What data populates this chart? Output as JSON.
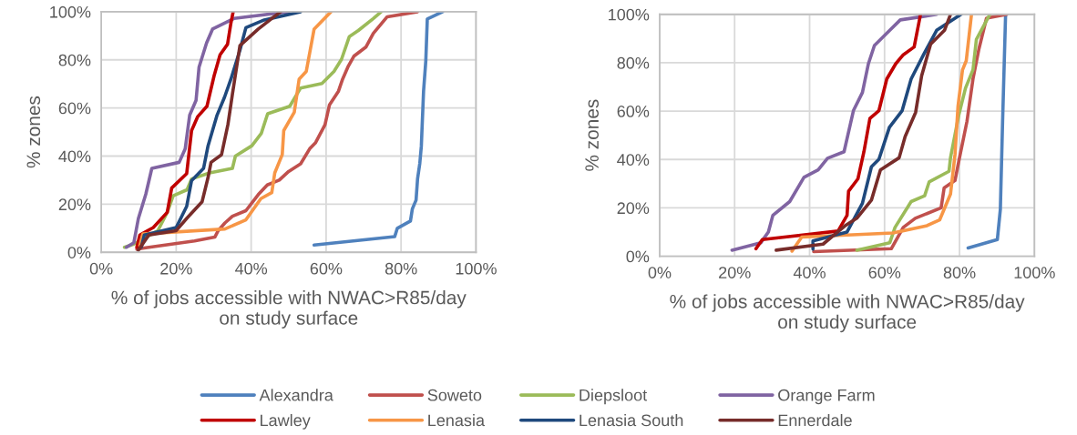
{
  "chart_data": [
    {
      "type": "line",
      "xlabel": "% of jobs accessible with NWAC>R85/day\non study surface",
      "ylabel": "% zones",
      "xlim": [
        0,
        100
      ],
      "ylim": [
        0,
        100
      ],
      "xticks": [
        {
          "value": 0,
          "label": "0%"
        },
        {
          "value": 20,
          "label": "20%"
        },
        {
          "value": 40,
          "label": "40%"
        },
        {
          "value": 60,
          "label": "60%"
        },
        {
          "value": 80,
          "label": "80%"
        },
        {
          "value": 100,
          "label": "100%"
        }
      ],
      "yticks": [
        {
          "value": 0,
          "label": "0%"
        },
        {
          "value": 20,
          "label": "20%"
        },
        {
          "value": 40,
          "label": "40%"
        },
        {
          "value": 60,
          "label": "60%"
        },
        {
          "value": 80,
          "label": "80%"
        },
        {
          "value": 100,
          "label": "100%"
        }
      ],
      "grid": true,
      "legend": "bottom",
      "marker": "none",
      "line_style": "solid",
      "series": [
        {
          "name": "Alexandra",
          "color": "#4f81bd",
          "x": [
            56.8,
            78.3,
            79,
            82.5,
            83,
            84,
            84.4,
            85,
            85.4,
            86,
            86.6,
            87,
            91.1
          ],
          "values": [
            3,
            6.5,
            10,
            13,
            18,
            21.7,
            30.5,
            37,
            44,
            67,
            79.6,
            97,
            100
          ]
        },
        {
          "name": "Soweto",
          "color": "#c0504d",
          "x": [
            9.5,
            12.3,
            24.9,
            30.3,
            31.2,
            33,
            35,
            38.6,
            41.9,
            44.3,
            47.5,
            50,
            53.2,
            55.6,
            57.2,
            59.7,
            60.9,
            63.3,
            64.4,
            65.8,
            67.4,
            70.6,
            72.6,
            76.3,
            84.4
          ],
          "values": [
            1.3,
            2,
            4.7,
            6.3,
            9,
            12.2,
            15,
            17.3,
            24,
            28,
            30,
            33.6,
            36.8,
            43,
            45.6,
            53,
            61.3,
            67,
            72,
            77,
            81.5,
            85.3,
            91,
            97.9,
            100
          ]
        },
        {
          "name": "Diepsloot",
          "color": "#9bbb59",
          "x": [
            6.2,
            8.7,
            15.1,
            17.6,
            19.2,
            22.9,
            24.1,
            28.9,
            35,
            35.8,
            40.2,
            42.7,
            44.4,
            50.3,
            53.2,
            58.9,
            62.1,
            64.1,
            66.2,
            68.6,
            72.6,
            74.7
          ],
          "values": [
            2.1,
            3.4,
            9,
            16.6,
            23.5,
            26,
            30.5,
            33,
            34.9,
            40,
            44.3,
            49.4,
            57.6,
            60.7,
            68.3,
            70.2,
            75.2,
            80.2,
            89.7,
            92.2,
            97.2,
            100
          ]
        },
        {
          "name": "Orange Farm",
          "color": "#8064a2",
          "x": [
            6.7,
            8.7,
            9.9,
            11.9,
            13.5,
            20.8,
            22.4,
            23.6,
            25.3,
            26.1,
            28.1,
            29.7,
            35.4,
            50
          ],
          "values": [
            2.1,
            4,
            14,
            24.2,
            34.9,
            37.4,
            43,
            57,
            63.2,
            77,
            87,
            92.8,
            97.2,
            100
          ]
        },
        {
          "name": "Lawley",
          "color": "#c00000",
          "x": [
            9.5,
            10.3,
            13.9,
            17.6,
            18.8,
            22.8,
            24.1,
            25.7,
            28.2,
            30.1,
            31.7,
            33.7,
            34.6,
            35.2
          ],
          "values": [
            2.1,
            7.2,
            10.3,
            16.6,
            26.7,
            32.7,
            50.6,
            56.3,
            60.7,
            73.3,
            82.1,
            86.5,
            95.3,
            100
          ]
        },
        {
          "name": "Lenasia",
          "color": "#f79646",
          "x": [
            10.3,
            11.1,
            33,
            38.6,
            42.6,
            45.5,
            46.3,
            48.3,
            48.7,
            51.5,
            52.8,
            54.7,
            56.8,
            61.3
          ],
          "values": [
            2.8,
            7.6,
            9.7,
            13.5,
            22.3,
            24.8,
            33,
            40.6,
            50.6,
            58.2,
            72,
            75.2,
            92.8,
            100
          ]
        },
        {
          "name": "Lenasia South",
          "color": "#1f497d",
          "x": [
            10.7,
            11.5,
            20,
            22.8,
            24.1,
            27.3,
            28.5,
            30.9,
            32.9,
            34.6,
            37,
            38.6,
            43.5,
            53.2
          ],
          "values": [
            2.1,
            7.2,
            10.3,
            19.1,
            29.8,
            34.9,
            44.3,
            57,
            64.5,
            72,
            84,
            93.4,
            96.6,
            100
          ]
        },
        {
          "name": "Ennerdale",
          "color": "#772c2a",
          "x": [
            9.9,
            12.7,
            20,
            22.8,
            26.9,
            28.5,
            29.3,
            32.1,
            33.8,
            35,
            37,
            41.9,
            45.5,
            47.9
          ],
          "values": [
            0.9,
            7.2,
            9,
            14.1,
            21,
            31.1,
            37.4,
            40.6,
            53.1,
            65.7,
            85.9,
            92.8,
            97.2,
            100
          ]
        }
      ]
    },
    {
      "type": "line",
      "xlabel": "% of jobs accessible with NWAC>R85/day\non study surface",
      "ylabel": "% zones",
      "xlim": [
        0,
        100
      ],
      "ylim": [
        0,
        100
      ],
      "xticks": [
        {
          "value": 0,
          "label": "0%"
        },
        {
          "value": 20,
          "label": "20%"
        },
        {
          "value": 40,
          "label": "40%"
        },
        {
          "value": 60,
          "label": "60%"
        },
        {
          "value": 80,
          "label": "80%"
        },
        {
          "value": 100,
          "label": "100%"
        }
      ],
      "yticks": [
        {
          "value": 0,
          "label": "0%"
        },
        {
          "value": 20,
          "label": "20%"
        },
        {
          "value": 40,
          "label": "40%"
        },
        {
          "value": 60,
          "label": "60%"
        },
        {
          "value": 80,
          "label": "80%"
        },
        {
          "value": 100,
          "label": "100%"
        }
      ],
      "grid": true,
      "marker": "none",
      "line_style": "solid",
      "series": [
        {
          "color": "#4f81bd",
          "x": [
            82.3,
            90.1,
            90.9,
            91.5,
            92.3
          ],
          "values": [
            3.4,
            6.9,
            19.4,
            55.8,
            100
          ]
        },
        {
          "color": "#c0504d",
          "x": [
            41.1,
            61.8,
            65,
            68.2,
            75.1,
            75.9,
            78.8,
            80,
            82,
            83.6,
            85.2,
            87.2,
            92.6
          ],
          "values": [
            1.9,
            3.1,
            11.9,
            15.7,
            20,
            28.2,
            31.3,
            40.7,
            55.8,
            73.3,
            85.8,
            98.4,
            100
          ]
        },
        {
          "color": "#9bbb59",
          "x": [
            52.6,
            61.4,
            62.8,
            67.1,
            70.7,
            71.9,
            77.2,
            77.6,
            79.8,
            81.6,
            83.6,
            84.5,
            88.1
          ],
          "values": [
            2.5,
            5.6,
            11.9,
            22.6,
            25,
            30.7,
            35.1,
            40.7,
            58.3,
            69.5,
            77.1,
            89.6,
            100
          ]
        },
        {
          "color": "#8064a2",
          "x": [
            19.3,
            27,
            29,
            30.2,
            34.7,
            38.5,
            42.3,
            44.8,
            49.2,
            51.7,
            54.1,
            55.7,
            57.3,
            61.4,
            64.2,
            73.9
          ],
          "values": [
            2.5,
            5.6,
            10,
            16.9,
            22.6,
            32.6,
            35.7,
            40.5,
            43.2,
            60.2,
            67.7,
            79.6,
            87.1,
            93.4,
            97.7,
            100
          ]
        },
        {
          "color": "#c00000",
          "x": [
            25.7,
            27.4,
            47.6,
            50,
            50.4,
            52.9,
            54.5,
            56.1,
            58.5,
            60.6,
            63,
            65,
            67.9,
            69.6
          ],
          "values": [
            3.1,
            6.9,
            10.4,
            16.9,
            26.9,
            32,
            43.2,
            57,
            60.2,
            73.3,
            79.6,
            83.3,
            86.5,
            100
          ]
        },
        {
          "color": "#f79646",
          "x": [
            35.3,
            37.9,
            62.2,
            71.1,
            74.7,
            77.6,
            78.8,
            79.6,
            80.8,
            81.8,
            83.2
          ],
          "values": [
            2.1,
            7.9,
            9.6,
            12.5,
            15,
            25.7,
            42,
            62,
            77,
            80.8,
            100
          ]
        },
        {
          "color": "#1f497d",
          "x": [
            40.9,
            40.9,
            50,
            54.1,
            56.5,
            58.5,
            61.3,
            64.7,
            67.1,
            70.4,
            73.9,
            80.4
          ],
          "values": [
            2.9,
            6.3,
            10,
            21.9,
            37,
            40.1,
            53.3,
            60.2,
            73.3,
            83.3,
            93.4,
            100
          ]
        },
        {
          "color": "#772c2a",
          "x": [
            31.1,
            43.6,
            49.4,
            52.6,
            56.5,
            58.9,
            63.9,
            65.5,
            68.3,
            69.9,
            72.3,
            76,
            77.6
          ],
          "values": [
            2.5,
            5,
            12.5,
            15.7,
            23.2,
            35.7,
            40.7,
            49.5,
            59.5,
            74.6,
            87.7,
            93.4,
            100
          ]
        }
      ]
    }
  ]
}
